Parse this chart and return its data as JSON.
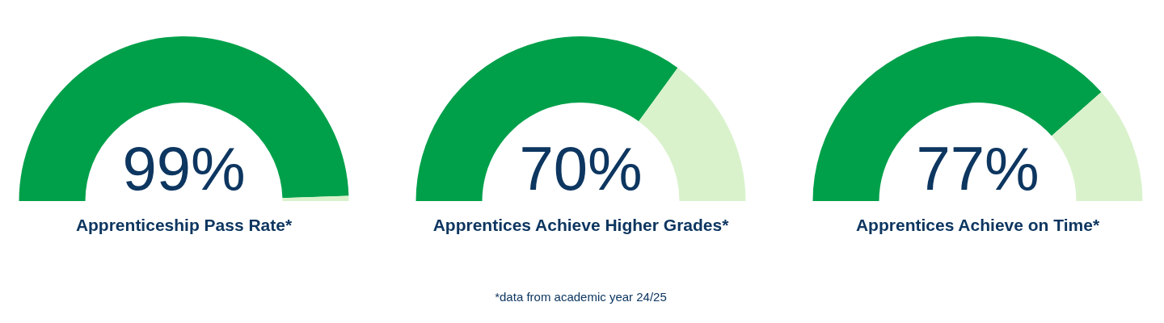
{
  "chart_data": [
    {
      "type": "donut",
      "title": "Apprenticeship Pass Rate*",
      "categories": [
        null,
        null
      ],
      "values": [
        99,
        1
      ],
      "colors": [
        "#00a04a",
        "#d9f2cc"
      ],
      "value_labels": [
        "99%",
        null
      ]
    },
    {
      "type": "donut",
      "title": "Apprentices Achieve Higher Grades*",
      "categories": [
        null,
        null
      ],
      "values": [
        70,
        30
      ],
      "colors": [
        "#00a04a",
        "#d9f2cc"
      ],
      "value_labels": [
        "70%",
        null
      ],
      "annotations": [
        "*data from academic year 24/25"
      ]
    },
    {
      "type": "donut",
      "title": "Apprentices Achieve on Time*",
      "categories": [
        null,
        null
      ],
      "values": [
        77,
        23
      ],
      "colors": [
        "#00a04a",
        "#d9f2cc"
      ],
      "value_labels": [
        "77%",
        null
      ]
    }
  ]
}
